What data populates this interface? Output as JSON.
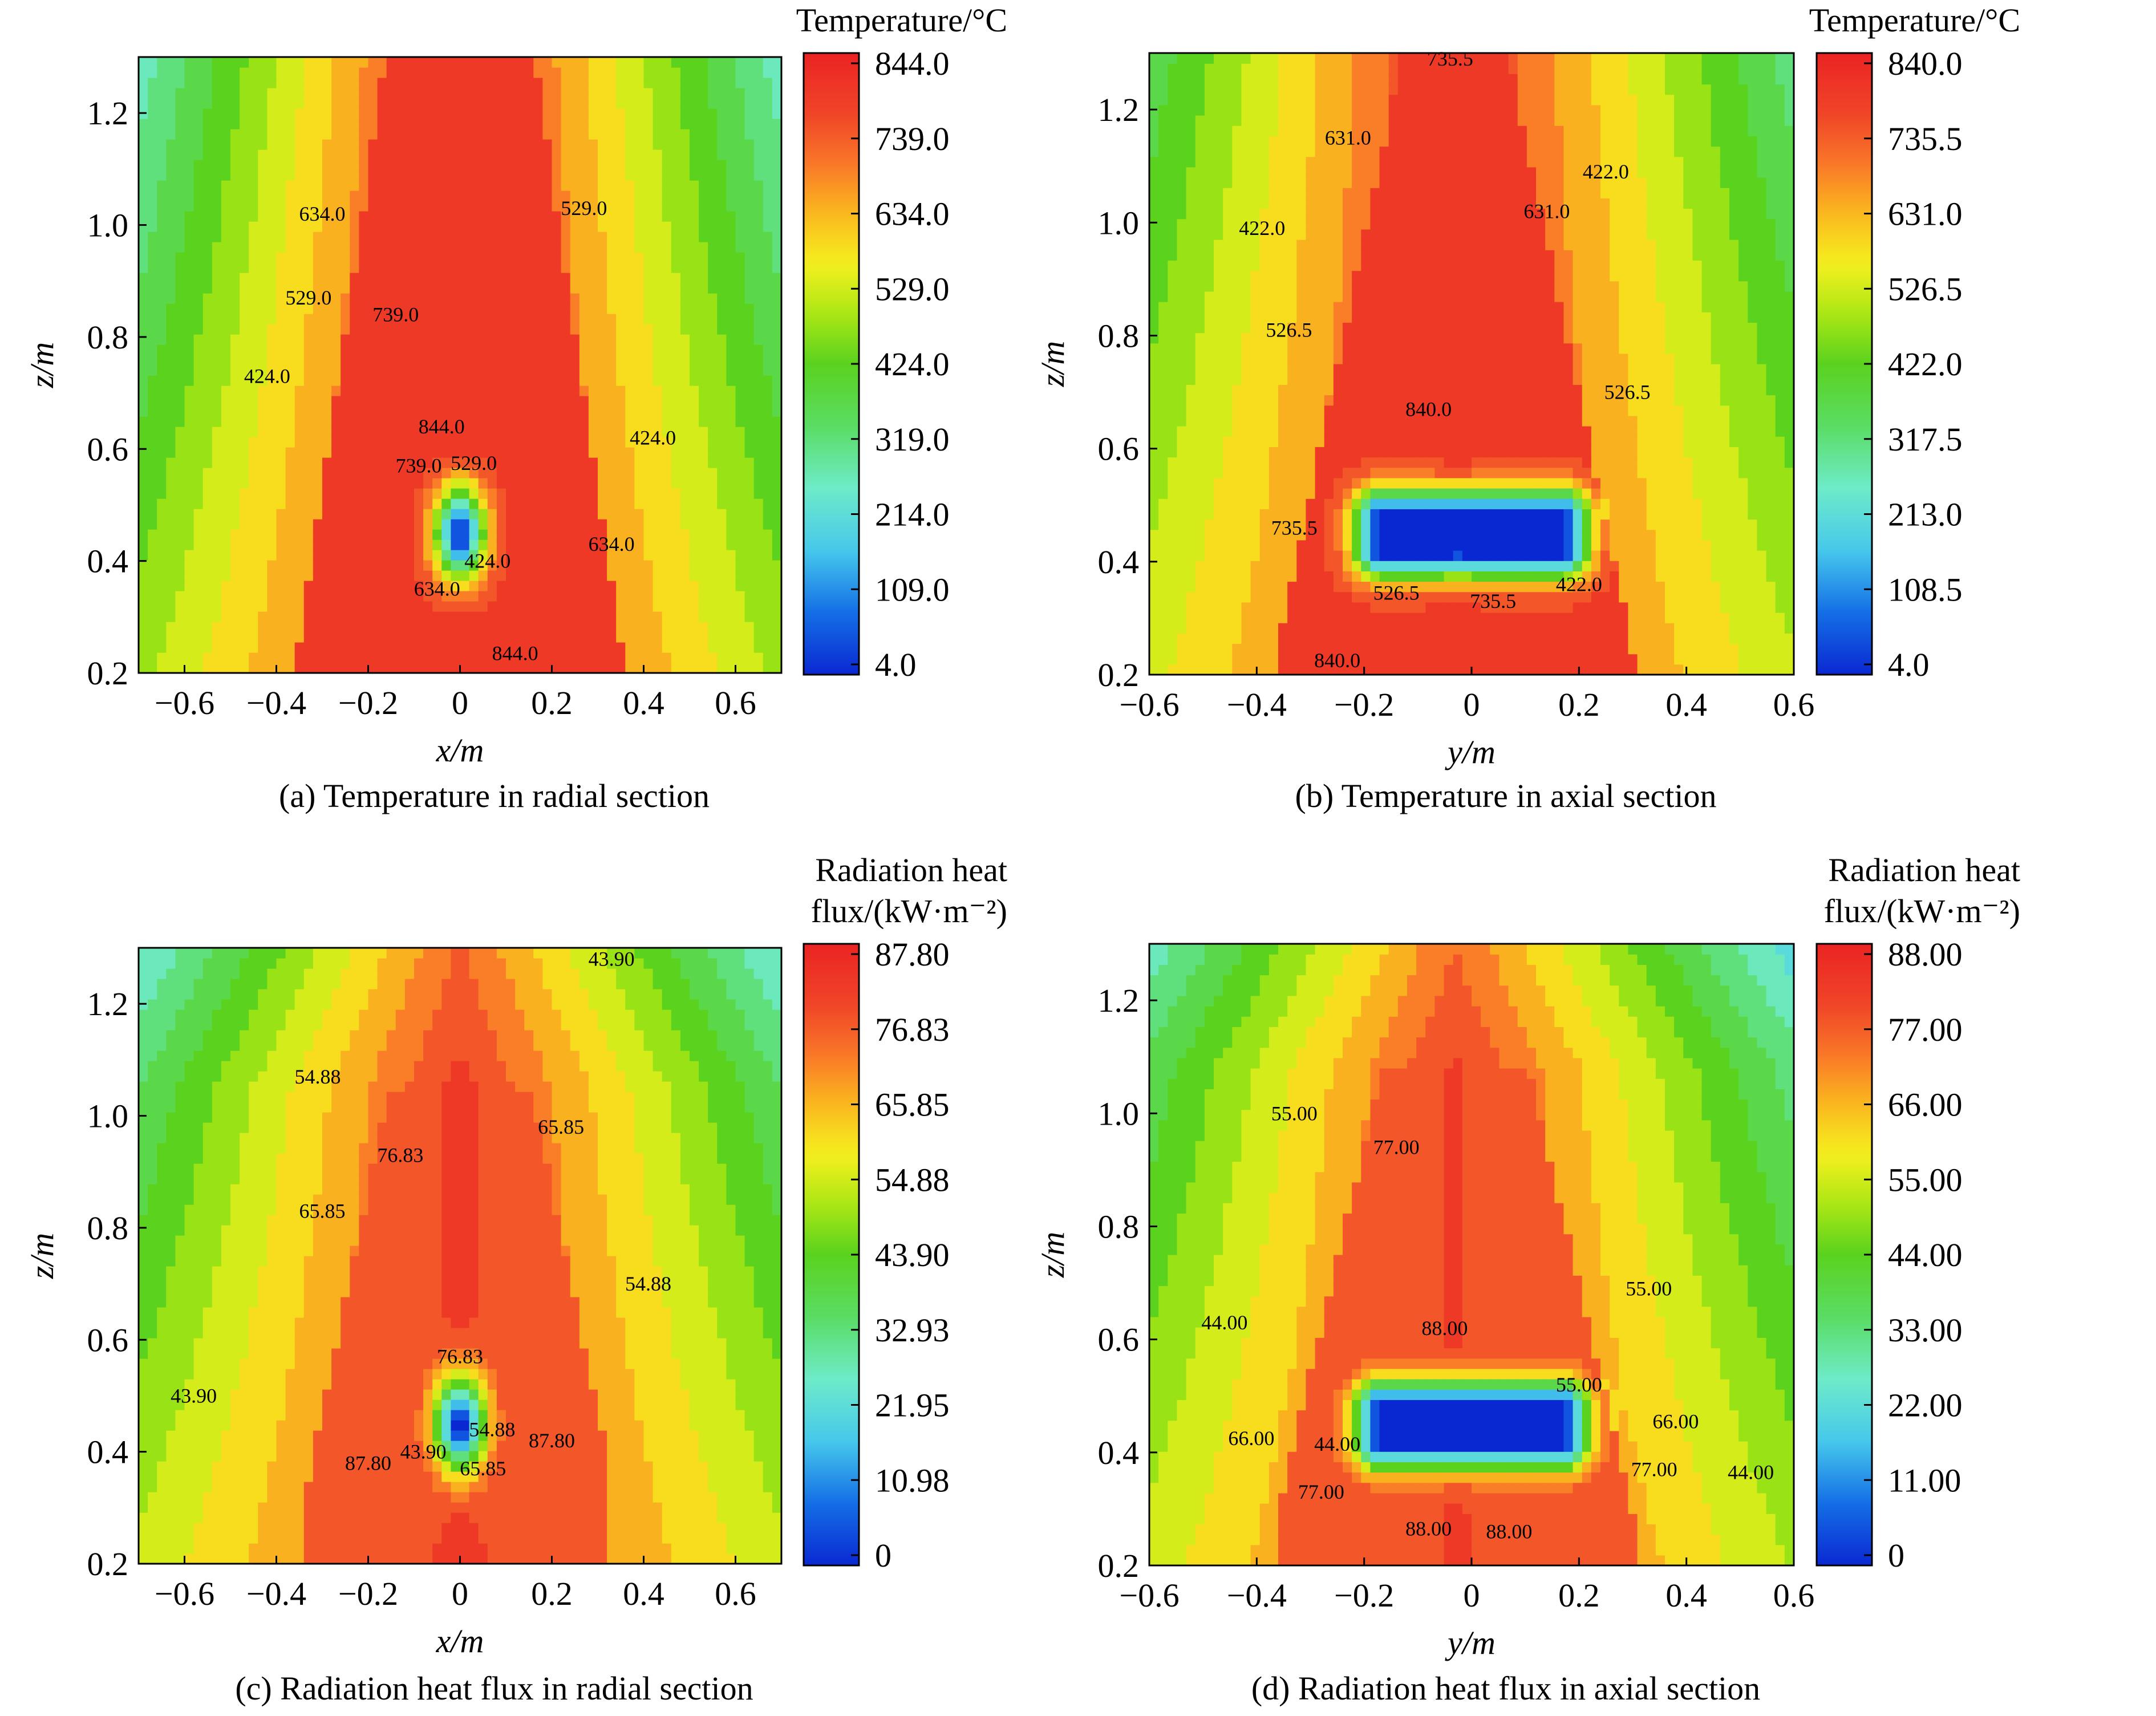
{
  "chart_data": [
    {
      "type": "heatmap",
      "subtype": "filled-contour",
      "caption": "(a) Temperature in radial section",
      "xlabel": "x/m",
      "ylabel": "z/m",
      "xlim": [
        -0.7,
        0.7
      ],
      "ylim": [
        0.2,
        1.3
      ],
      "xticks": [
        "−0.6",
        "−0.4",
        "−0.2",
        "0",
        "0.2",
        "0.4",
        "0.6"
      ],
      "yticks": [
        "0.2",
        "0.4",
        "0.6",
        "0.8",
        "1.0",
        "1.2"
      ],
      "colorbar": {
        "title": [
          "Temperature/°C"
        ],
        "min": 4.0,
        "max": 844.0,
        "ticks": [
          "844.0",
          "739.0",
          "634.0",
          "529.0",
          "424.0",
          "319.0",
          "214.0",
          "109.0",
          "4.0"
        ]
      },
      "field": {
        "background": "radial",
        "cool_spot": {
          "x": 0.0,
          "z": 0.45,
          "shape": "small-oval"
        }
      },
      "contour_labels": [
        {
          "text": "634.0",
          "x": -0.3,
          "z": 1.02
        },
        {
          "text": "529.0",
          "x": 0.27,
          "z": 1.03
        },
        {
          "text": "529.0",
          "x": -0.33,
          "z": 0.87
        },
        {
          "text": "739.0",
          "x": -0.14,
          "z": 0.84
        },
        {
          "text": "424.0",
          "x": -0.42,
          "z": 0.73
        },
        {
          "text": "844.0",
          "x": -0.04,
          "z": 0.64
        },
        {
          "text": "424.0",
          "x": 0.42,
          "z": 0.62
        },
        {
          "text": "739.0",
          "x": -0.09,
          "z": 0.57
        },
        {
          "text": "529.0",
          "x": 0.03,
          "z": 0.575
        },
        {
          "text": "634.0",
          "x": 0.33,
          "z": 0.43
        },
        {
          "text": "424.0",
          "x": 0.06,
          "z": 0.4
        },
        {
          "text": "634.0",
          "x": -0.05,
          "z": 0.35
        },
        {
          "text": "844.0",
          "x": 0.12,
          "z": 0.235
        }
      ]
    },
    {
      "type": "heatmap",
      "subtype": "filled-contour",
      "caption": "(b) Temperature in axial section",
      "xlabel": "y/m",
      "ylabel": "z/m",
      "xlim": [
        -0.6,
        0.6
      ],
      "ylim": [
        0.2,
        1.3
      ],
      "xticks": [
        "−0.6",
        "−0.4",
        "−0.2",
        "0",
        "0.2",
        "0.4",
        "0.6"
      ],
      "yticks": [
        "0.2",
        "0.4",
        "0.6",
        "0.8",
        "1.0",
        "1.2"
      ],
      "colorbar": {
        "title": [
          "Temperature/°C"
        ],
        "min": 4.0,
        "max": 840.0,
        "ticks": [
          "840.0",
          "735.5",
          "631.0",
          "526.5",
          "422.0",
          "317.5",
          "213.0",
          "108.5",
          "4.0"
        ]
      },
      "field": {
        "background": "axial",
        "cool_spot": {
          "x": 0.0,
          "z": 0.45,
          "shape": "wide-bar"
        }
      },
      "contour_labels": [
        {
          "text": "735.5",
          "x": -0.04,
          "z": 1.29
        },
        {
          "text": "631.0",
          "x": -0.23,
          "z": 1.15
        },
        {
          "text": "422.0",
          "x": 0.25,
          "z": 1.09
        },
        {
          "text": "631.0",
          "x": 0.14,
          "z": 1.02
        },
        {
          "text": "422.0",
          "x": -0.39,
          "z": 0.99
        },
        {
          "text": "526.5",
          "x": -0.34,
          "z": 0.81
        },
        {
          "text": "526.5",
          "x": 0.29,
          "z": 0.7
        },
        {
          "text": "840.0",
          "x": -0.08,
          "z": 0.67
        },
        {
          "text": "735.5",
          "x": -0.33,
          "z": 0.46
        },
        {
          "text": "422.0",
          "x": 0.2,
          "z": 0.36
        },
        {
          "text": "526.5",
          "x": -0.14,
          "z": 0.345
        },
        {
          "text": "735.5",
          "x": 0.04,
          "z": 0.33
        },
        {
          "text": "840.0",
          "x": -0.25,
          "z": 0.225
        }
      ]
    },
    {
      "type": "heatmap",
      "subtype": "filled-contour",
      "caption": "(c) Radiation heat flux in radial section",
      "xlabel": "x/m",
      "ylabel": "z/m",
      "xlim": [
        -0.7,
        0.7
      ],
      "ylim": [
        0.2,
        1.3
      ],
      "xticks": [
        "−0.6",
        "−0.4",
        "−0.2",
        "0",
        "0.2",
        "0.4",
        "0.6"
      ],
      "yticks": [
        "0.2",
        "0.4",
        "0.6",
        "0.8",
        "1.0",
        "1.2"
      ],
      "colorbar": {
        "title": [
          "Radiation heat",
          "flux/(kW·m⁻²)"
        ],
        "min": 0,
        "max": 87.8,
        "ticks": [
          "87.80",
          "76.83",
          "65.85",
          "54.88",
          "43.90",
          "32.93",
          "21.95",
          "10.98",
          "0"
        ]
      },
      "field": {
        "background": "radial-flux",
        "cool_spot": {
          "x": 0.0,
          "z": 0.45,
          "shape": "small-oval"
        }
      },
      "contour_labels": [
        {
          "text": "43.90",
          "x": 0.33,
          "z": 1.28
        },
        {
          "text": "54.88",
          "x": -0.31,
          "z": 1.07
        },
        {
          "text": "65.85",
          "x": 0.22,
          "z": 0.98
        },
        {
          "text": "76.83",
          "x": -0.13,
          "z": 0.93
        },
        {
          "text": "65.85",
          "x": -0.3,
          "z": 0.83
        },
        {
          "text": "54.88",
          "x": 0.41,
          "z": 0.7
        },
        {
          "text": "76.83",
          "x": 0.0,
          "z": 0.57
        },
        {
          "text": "43.90",
          "x": -0.58,
          "z": 0.5
        },
        {
          "text": "54.88",
          "x": 0.07,
          "z": 0.44
        },
        {
          "text": "87.80",
          "x": 0.2,
          "z": 0.42
        },
        {
          "text": "43.90",
          "x": -0.08,
          "z": 0.4
        },
        {
          "text": "87.80",
          "x": -0.2,
          "z": 0.38
        },
        {
          "text": "65.85",
          "x": 0.05,
          "z": 0.37
        }
      ]
    },
    {
      "type": "heatmap",
      "subtype": "filled-contour",
      "caption": "(d) Radiation heat flux in axial section",
      "xlabel": "y/m",
      "ylabel": "z/m",
      "xlim": [
        -0.6,
        0.6
      ],
      "ylim": [
        0.2,
        1.3
      ],
      "xticks": [
        "−0.6",
        "−0.4",
        "−0.2",
        "0",
        "0.2",
        "0.4",
        "0.6"
      ],
      "yticks": [
        "0.2",
        "0.4",
        "0.6",
        "0.8",
        "1.0",
        "1.2"
      ],
      "colorbar": {
        "title": [
          "Radiation heat",
          "flux/(kW·m⁻²)"
        ],
        "min": 0,
        "max": 88.0,
        "ticks": [
          "88.00",
          "77.00",
          "66.00",
          "55.00",
          "44.00",
          "33.00",
          "22.00",
          "11.00",
          "0"
        ]
      },
      "field": {
        "background": "axial-flux",
        "cool_spot": {
          "x": 0.0,
          "z": 0.45,
          "shape": "wide-bar"
        }
      },
      "contour_labels": [
        {
          "text": "55.00",
          "x": -0.33,
          "z": 1.0
        },
        {
          "text": "77.00",
          "x": -0.14,
          "z": 0.94
        },
        {
          "text": "55.00",
          "x": 0.33,
          "z": 0.69
        },
        {
          "text": "44.00",
          "x": -0.46,
          "z": 0.63
        },
        {
          "text": "88.00",
          "x": -0.05,
          "z": 0.62
        },
        {
          "text": "55.00",
          "x": 0.2,
          "z": 0.52
        },
        {
          "text": "66.00",
          "x": 0.38,
          "z": 0.455
        },
        {
          "text": "66.00",
          "x": -0.41,
          "z": 0.425
        },
        {
          "text": "44.00",
          "x": -0.25,
          "z": 0.415
        },
        {
          "text": "77.00",
          "x": 0.34,
          "z": 0.37
        },
        {
          "text": "44.00",
          "x": 0.52,
          "z": 0.365
        },
        {
          "text": "77.00",
          "x": -0.28,
          "z": 0.33
        },
        {
          "text": "88.00",
          "x": -0.08,
          "z": 0.265
        },
        {
          "text": "88.00",
          "x": 0.07,
          "z": 0.26
        }
      ]
    }
  ]
}
